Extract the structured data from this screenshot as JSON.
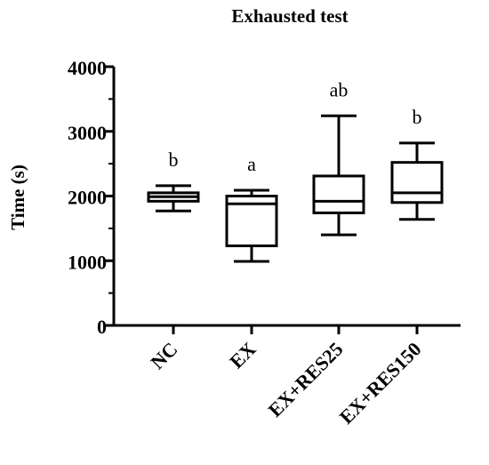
{
  "chart_data": {
    "type": "boxplot",
    "title": "Exhausted test",
    "ylabel": "Time (s)",
    "xlabel": "",
    "ylim": [
      0,
      4000
    ],
    "yticks": [
      0,
      1000,
      2000,
      3000,
      4000
    ],
    "categories": [
      "NC",
      "EX",
      "EX+RES25",
      "EX+RES150"
    ],
    "boxes": [
      {
        "category": "NC",
        "min": 1770,
        "q1": 1920,
        "median": 1990,
        "q3": 2050,
        "max": 2160,
        "annotation": "b"
      },
      {
        "category": "EX",
        "min": 990,
        "q1": 1230,
        "median": 1880,
        "q3": 2000,
        "max": 2090,
        "annotation": "a"
      },
      {
        "category": "EX+RES25",
        "min": 1400,
        "q1": 1740,
        "median": 1920,
        "q3": 2310,
        "max": 3240,
        "annotation": "ab"
      },
      {
        "category": "EX+RES150",
        "min": 1640,
        "q1": 1900,
        "median": 2050,
        "q3": 2520,
        "max": 2820,
        "annotation": "b"
      }
    ],
    "grid": false,
    "legend": "none",
    "color": "#000000"
  }
}
